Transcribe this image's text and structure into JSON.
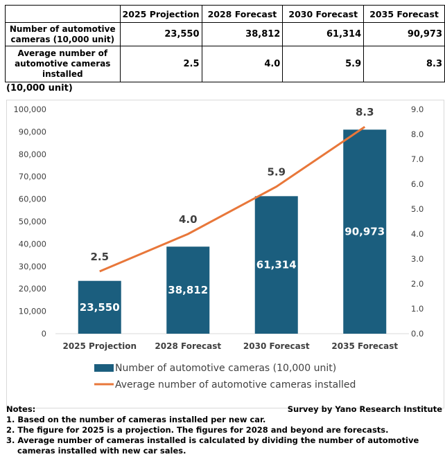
{
  "table": {
    "headers": [
      "",
      "2025 Projection",
      "2028 Forecast",
      "2030 Forecast",
      "2035 Forecast"
    ],
    "rows": [
      {
        "label": "Number of automotive cameras (10,000 unit)",
        "values": [
          "23,550",
          "38,812",
          "61,314",
          "90,973"
        ]
      },
      {
        "label": "Average number of automotive cameras installed",
        "values": [
          "2.5",
          "4.0",
          "5.9",
          "8.3"
        ]
      }
    ]
  },
  "unit_label": "(10,000 unit)",
  "chart_data": {
    "type": "bar+line",
    "categories": [
      "2025 Projection",
      "2028 Forecast",
      "2030 Forecast",
      "2035 Forecast"
    ],
    "series": [
      {
        "name": "Number of automotive cameras (10,000 unit)",
        "type": "bar",
        "axis": "left",
        "values": [
          23550,
          38812,
          61314,
          90973
        ],
        "labels": [
          "23,550",
          "38,812",
          "61,314",
          "90,973"
        ],
        "color": "#1b5e7e"
      },
      {
        "name": "Average number of automotive cameras installed",
        "type": "line",
        "axis": "right",
        "values": [
          2.5,
          4.0,
          5.9,
          8.3
        ],
        "labels": [
          "2.5",
          "4.0",
          "5.9",
          "8.3"
        ],
        "color": "#e8773a"
      }
    ],
    "left_axis": {
      "ylim": [
        0,
        100000
      ],
      "ticks": [
        "0",
        "10,000",
        "20,000",
        "30,000",
        "40,000",
        "50,000",
        "60,000",
        "70,000",
        "80,000",
        "90,000",
        "100,000"
      ]
    },
    "right_axis": {
      "ylim": [
        0,
        9
      ],
      "ticks": [
        "0.0",
        "1.0",
        "2.0",
        "3.0",
        "4.0",
        "5.0",
        "6.0",
        "7.0",
        "8.0",
        "9.0"
      ]
    },
    "grid": false,
    "legend": "bottom"
  },
  "notes": {
    "title": "Notes:",
    "items": [
      "1. Based on the number of cameras installed per new car.",
      "2. The figure for 2025 is a projection. The figures for 2028 and beyond are forecasts.",
      "3. Average number of cameras installed is calculated by dividing the number of automotive",
      "cameras installed with new car sales."
    ]
  },
  "source": "Survey by Yano Research Institute"
}
